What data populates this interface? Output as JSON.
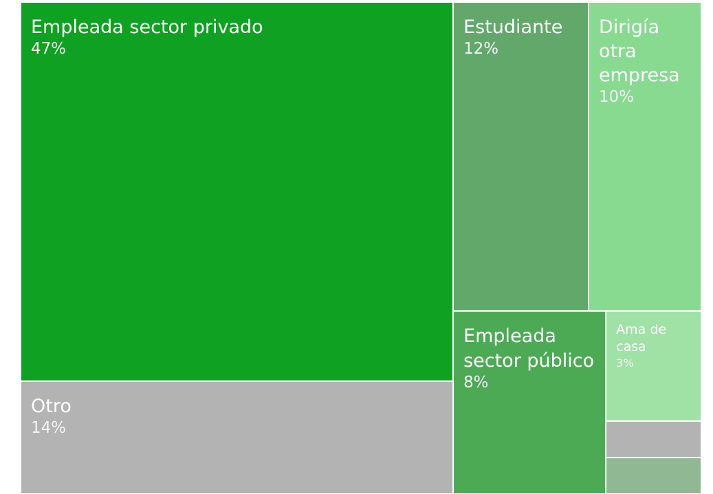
{
  "chart_data": {
    "type": "treemap",
    "categories": [
      "Empleada sector privado",
      "Otro",
      "Estudiante",
      "Dirigía otra empresa",
      "Empleada sector público",
      "Ama de casa",
      null,
      null
    ],
    "values": [
      47,
      14,
      12,
      10,
      8,
      3,
      1,
      1
    ],
    "value_labels": [
      "47%",
      "14%",
      "12%",
      "10%",
      "8%",
      "3%",
      null,
      null
    ],
    "colors": [
      "#0fa121",
      "#b3b3b3",
      "#63a86b",
      "#88da91",
      "#4caa55",
      "#a0e1a6",
      "#b3b3b3",
      "#90b893"
    ]
  }
}
